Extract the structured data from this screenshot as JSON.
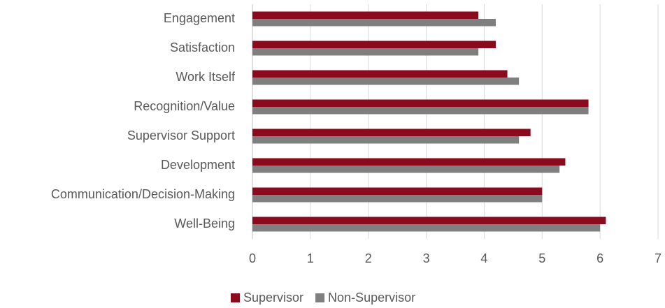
{
  "chart_data": {
    "type": "bar",
    "orientation": "horizontal",
    "categories": [
      "Engagement",
      "Satisfaction",
      "Work Itself",
      "Recognition/Value",
      "Supervisor Support",
      "Development",
      "Communication/Decision-Making",
      "Well-Being"
    ],
    "series": [
      {
        "name": "Supervisor",
        "color": "#8b0a1e",
        "values": [
          3.9,
          4.2,
          4.4,
          5.8,
          4.8,
          5.4,
          5.0,
          6.1
        ]
      },
      {
        "name": "Non-Supervisor",
        "color": "#7f7f7f",
        "values": [
          4.2,
          3.9,
          4.6,
          5.8,
          4.6,
          5.3,
          5.0,
          6.0
        ]
      }
    ],
    "xlim": [
      0,
      7
    ],
    "xticks": [
      0,
      1,
      2,
      3,
      4,
      5,
      6,
      7
    ],
    "grid": true,
    "legend": "bottom"
  }
}
